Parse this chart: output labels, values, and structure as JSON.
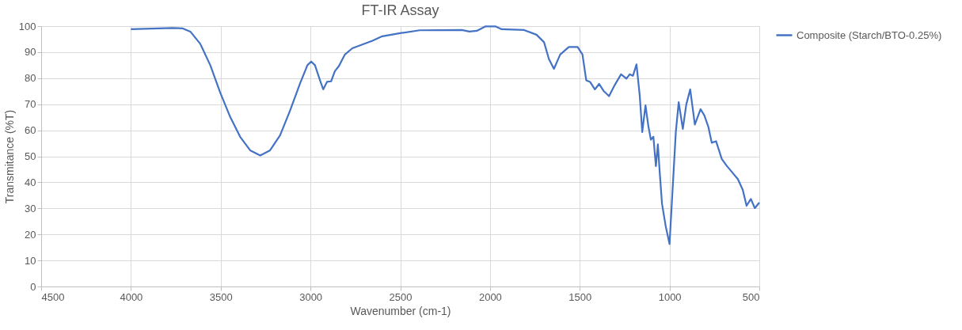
{
  "chart_data": {
    "type": "line",
    "title": "FT-IR Assay",
    "xlabel": "Wavenumber (cm-1)",
    "ylabel": "Transmitance (%T)",
    "xlim": [
      4500,
      500
    ],
    "xticks": [
      4500,
      4000,
      3500,
      3000,
      2500,
      2000,
      1500,
      1000,
      500
    ],
    "ylim": [
      0,
      100
    ],
    "yticks": [
      0,
      10,
      20,
      30,
      40,
      50,
      60,
      70,
      80,
      90,
      100
    ],
    "grid": true,
    "legend": "right",
    "marker": "none",
    "line_style": "solid",
    "x": [
      4000,
      3767,
      3711,
      3669,
      3614,
      3558,
      3503,
      3447,
      3392,
      3336,
      3280,
      3225,
      3169,
      3114,
      3058,
      3017,
      2996,
      2975,
      2947,
      2929,
      2908,
      2885,
      2864,
      2843,
      2808,
      2767,
      2655,
      2600,
      2500,
      2392,
      2157,
      2115,
      2073,
      2025,
      1970,
      1935,
      1810,
      1741,
      1699,
      1672,
      1644,
      1609,
      1561,
      1512,
      1485,
      1464,
      1443,
      1416,
      1392,
      1367,
      1337,
      1305,
      1270,
      1240,
      1222,
      1204,
      1184,
      1166,
      1152,
      1134,
      1118,
      1104,
      1090,
      1076,
      1065,
      1055,
      1042,
      1021,
      1000,
      986,
      965,
      949,
      926,
      907,
      885,
      859,
      827,
      806,
      783,
      765,
      741,
      709,
      682,
      647,
      619,
      592,
      571,
      547,
      525,
      500
    ],
    "series": [
      {
        "name": "Composite (Starch/BTO-0.25%)",
        "color": "#4472c4",
        "values": [
          98.8,
          99.3,
          99.1,
          97.9,
          93.2,
          85,
          74.5,
          65.1,
          57.5,
          52.3,
          50.3,
          52.3,
          58.1,
          67.5,
          78,
          85,
          86.4,
          85,
          79.2,
          75.7,
          78.6,
          78.8,
          82.7,
          84.5,
          89.1,
          91.5,
          94.4,
          96.1,
          97.3,
          98.4,
          98.5,
          97.9,
          98.2,
          99.9,
          99.9,
          98.8,
          98.5,
          96.7,
          93.8,
          87.4,
          83.6,
          89.1,
          92,
          92,
          89.1,
          79.2,
          78.6,
          75.7,
          77.8,
          75.1,
          73.1,
          77.4,
          81.5,
          79.8,
          81.5,
          80.9,
          85.3,
          73.3,
          59.3,
          69.6,
          61.6,
          56.4,
          57.5,
          46.2,
          54.6,
          44.1,
          31.8,
          23,
          16.3,
          33.6,
          59.3,
          70.8,
          60.5,
          69.8,
          75.7,
          62.2,
          68.1,
          65.7,
          61.1,
          55.2,
          55.8,
          49,
          46.4,
          43.5,
          41.2,
          37.1,
          31,
          33.6,
          30.1,
          32.2
        ]
      }
    ]
  }
}
